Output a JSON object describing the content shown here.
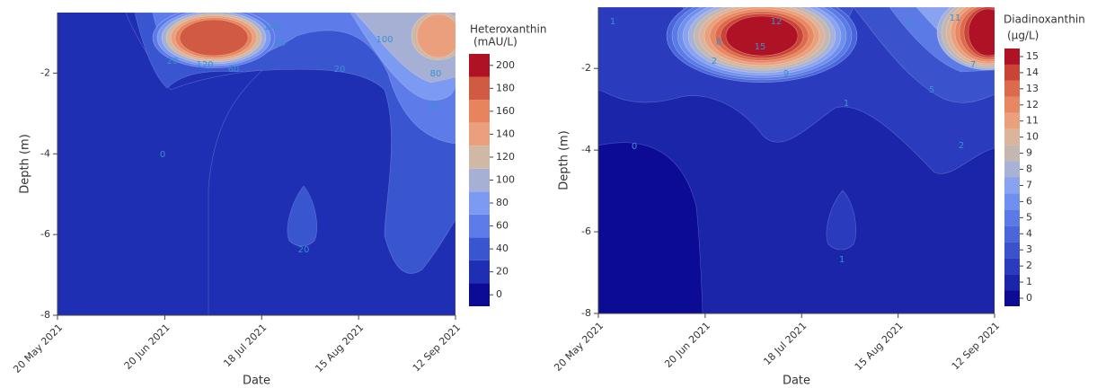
{
  "chart_data": [
    {
      "type": "contour",
      "x_label": "Date",
      "y_label": "Depth (m)",
      "colorbar_title": [
        "Heteroxanthin",
        "(mAU/L)"
      ],
      "xlim": [
        "2021-05-20",
        "2021-09-12"
      ],
      "xticks": [
        {
          "value": "2021-05-20",
          "label": "20 May 2021"
        },
        {
          "value": "2021-06-20",
          "label": "20 Jun 2021"
        },
        {
          "value": "2021-07-18",
          "label": "18 Jul 2021"
        },
        {
          "value": "2021-08-15",
          "label": "15 Aug 2021"
        },
        {
          "value": "2021-09-12",
          "label": "12 Sep 2021"
        }
      ],
      "ylim": [
        -8,
        -0.5
      ],
      "yticks": [
        -2,
        -4,
        -6,
        -8
      ],
      "clim": [
        -10,
        210
      ],
      "levels": [
        0,
        20,
        40,
        60,
        80,
        100,
        120,
        140,
        160,
        180,
        200
      ],
      "colors": [
        "#0b0b96",
        "#1f2fb4",
        "#3a55d0",
        "#5d7ce9",
        "#7d9af2",
        "#a6b0d5",
        "#d0b8a6",
        "#eba07d",
        "#e7845e",
        "#d05a42",
        "#b01225"
      ],
      "contour_labels": [
        0,
        20,
        20,
        20,
        60,
        80,
        80,
        100,
        120,
        140,
        60
      ]
    },
    {
      "type": "contour",
      "x_label": "Date",
      "y_label": "Depth (m)",
      "colorbar_title": [
        "Diadinoxanthin",
        "(µg/L)"
      ],
      "xlim": [
        "2021-05-20",
        "2021-09-12"
      ],
      "xticks": [
        {
          "value": "2021-05-20",
          "label": "20 May 2021"
        },
        {
          "value": "2021-06-20",
          "label": "20 Jun 2021"
        },
        {
          "value": "2021-07-18",
          "label": "18 Jul 2021"
        },
        {
          "value": "2021-08-15",
          "label": "15 Aug 2021"
        },
        {
          "value": "2021-09-12",
          "label": "12 Sep 2021"
        }
      ],
      "ylim": [
        -8,
        -0.5
      ],
      "yticks": [
        -2,
        -4,
        -6,
        -8
      ],
      "clim": [
        -0.5,
        15.5
      ],
      "levels": [
        0,
        1,
        2,
        3,
        4,
        5,
        6,
        7,
        8,
        9,
        10,
        11,
        12,
        13,
        14,
        15
      ],
      "colors": [
        "#0b0b96",
        "#1a25aa",
        "#2a3cbd",
        "#3a52cc",
        "#4a66da",
        "#5c7ae6",
        "#7090ef",
        "#8aa3f0",
        "#a7b2d6",
        "#c4b7b0",
        "#dcb49b",
        "#eba07d",
        "#e88863",
        "#dc6a4c",
        "#c94337",
        "#b01225"
      ],
      "contour_labels": [
        0,
        1,
        1,
        1,
        2,
        2,
        5,
        6,
        7,
        8,
        9,
        11,
        12,
        15
      ]
    }
  ]
}
